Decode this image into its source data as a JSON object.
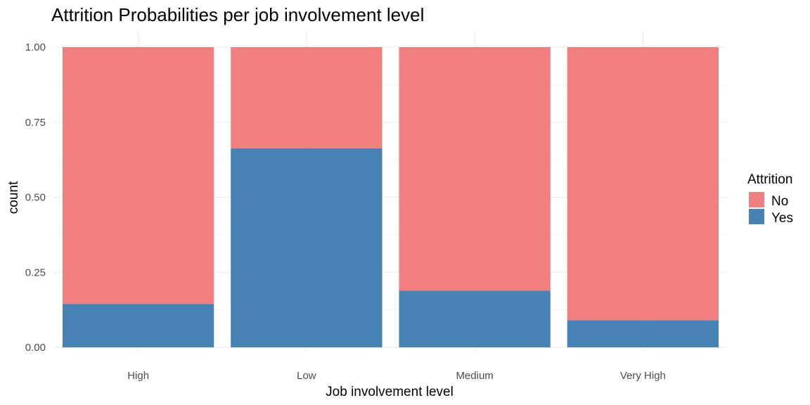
{
  "chart_data": {
    "type": "bar",
    "stacked": true,
    "title": "Attrition Probabilities per job involvement level",
    "xlabel": "Job involvement level",
    "ylabel": "count",
    "categories": [
      "High",
      "Low",
      "Medium",
      "Very High"
    ],
    "series": [
      {
        "name": "No",
        "color": "#F08080",
        "values": [
          0.856,
          0.337,
          0.811,
          0.91
        ]
      },
      {
        "name": "Yes",
        "color": "#4682B4",
        "values": [
          0.144,
          0.663,
          0.189,
          0.09
        ]
      }
    ],
    "ylim": [
      0,
      1
    ],
    "yticks": [
      "0.00",
      "0.25",
      "0.50",
      "0.75",
      "1.00"
    ],
    "ytick_values": [
      0,
      0.25,
      0.5,
      0.75,
      1.0
    ],
    "grid": true,
    "legend": {
      "title": "Attrition",
      "position": "right",
      "entries": [
        "No",
        "Yes"
      ]
    }
  }
}
